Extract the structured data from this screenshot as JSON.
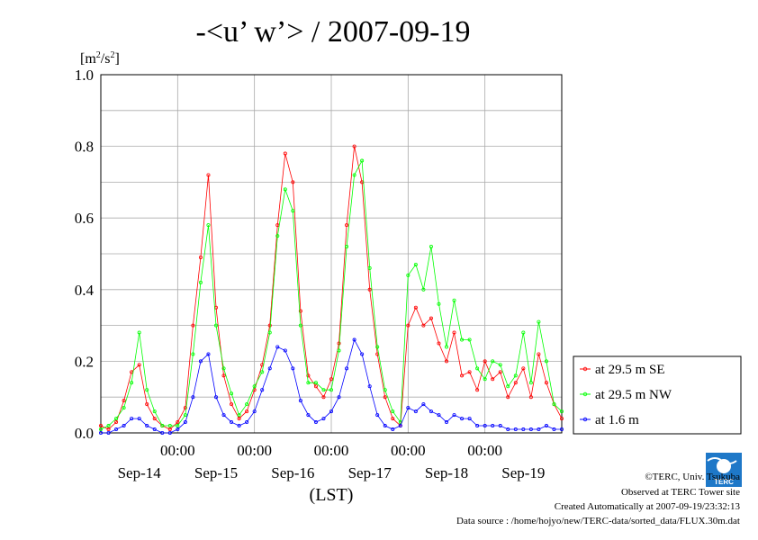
{
  "chart_data": {
    "type": "line",
    "title_main": "-<u’ w’> / 2007-09-19",
    "ylabel": {
      "prefix": "[m",
      "sup1": "2",
      "mid": "/s",
      "sup2": "2",
      "suffix": "]"
    },
    "xlabel": "(LST)",
    "ylim": [
      0,
      1.0
    ],
    "yticks": [
      0,
      0.2,
      0.4,
      0.6,
      0.8,
      1.0
    ],
    "ytick_labels": [
      "0.0",
      "0.2",
      "0.4",
      "0.6",
      "0.8",
      "1.0"
    ],
    "xlim": [
      0,
      6
    ],
    "xtick_labels_time": [
      "00:00",
      "00:00",
      "00:00",
      "00:00",
      "00:00"
    ],
    "x_day_labels": [
      "Sep-14",
      "Sep-15",
      "Sep-16",
      "Sep-17",
      "Sep-18",
      "Sep-19"
    ],
    "grid": true,
    "legend_position": "right",
    "series": [
      {
        "name": "at 29.5 m SE",
        "color": "#ff0000",
        "x": [
          0.0,
          0.1,
          0.2,
          0.3,
          0.4,
          0.5,
          0.6,
          0.7,
          0.8,
          0.9,
          1.0,
          1.1,
          1.2,
          1.3,
          1.4,
          1.5,
          1.6,
          1.7,
          1.8,
          1.9,
          2.0,
          2.1,
          2.2,
          2.3,
          2.4,
          2.5,
          2.6,
          2.7,
          2.8,
          2.9,
          3.0,
          3.1,
          3.2,
          3.3,
          3.4,
          3.5,
          3.6,
          3.7,
          3.8,
          3.9,
          4.0,
          4.1,
          4.2,
          4.3,
          4.4,
          4.5,
          4.6,
          4.7,
          4.8,
          4.9,
          5.0,
          5.1,
          5.2,
          5.3,
          5.4,
          5.5,
          5.6,
          5.7,
          5.8,
          5.9,
          6.0
        ],
        "values": [
          0.02,
          0.01,
          0.03,
          0.09,
          0.17,
          0.19,
          0.08,
          0.04,
          0.02,
          0.01,
          0.03,
          0.07,
          0.3,
          0.49,
          0.72,
          0.35,
          0.16,
          0.08,
          0.04,
          0.06,
          0.12,
          0.19,
          0.3,
          0.58,
          0.78,
          0.7,
          0.34,
          0.16,
          0.13,
          0.1,
          0.15,
          0.25,
          0.58,
          0.8,
          0.7,
          0.4,
          0.22,
          0.1,
          0.04,
          0.02,
          0.3,
          0.35,
          0.3,
          0.32,
          0.25,
          0.2,
          0.28,
          0.16,
          0.17,
          0.12,
          0.2,
          0.15,
          0.17,
          0.1,
          0.14,
          0.18,
          0.1,
          0.22,
          0.14,
          0.08,
          0.04
        ]
      },
      {
        "name": "at 29.5 m NW",
        "color": "#00ff00",
        "x": [
          0.0,
          0.1,
          0.2,
          0.3,
          0.4,
          0.5,
          0.6,
          0.7,
          0.8,
          0.9,
          1.0,
          1.1,
          1.2,
          1.3,
          1.4,
          1.5,
          1.6,
          1.7,
          1.8,
          1.9,
          2.0,
          2.1,
          2.2,
          2.3,
          2.4,
          2.5,
          2.6,
          2.7,
          2.8,
          2.9,
          3.0,
          3.1,
          3.2,
          3.3,
          3.4,
          3.5,
          3.6,
          3.7,
          3.8,
          3.9,
          4.0,
          4.1,
          4.2,
          4.3,
          4.4,
          4.5,
          4.6,
          4.7,
          4.8,
          4.9,
          5.0,
          5.1,
          5.2,
          5.3,
          5.4,
          5.5,
          5.6,
          5.7,
          5.8,
          5.9,
          6.0
        ],
        "values": [
          0.01,
          0.02,
          0.04,
          0.07,
          0.14,
          0.28,
          0.12,
          0.06,
          0.02,
          0.02,
          0.02,
          0.05,
          0.22,
          0.42,
          0.58,
          0.3,
          0.18,
          0.11,
          0.05,
          0.08,
          0.13,
          0.17,
          0.28,
          0.55,
          0.68,
          0.62,
          0.3,
          0.14,
          0.14,
          0.12,
          0.12,
          0.23,
          0.52,
          0.72,
          0.76,
          0.46,
          0.24,
          0.12,
          0.06,
          0.03,
          0.44,
          0.47,
          0.4,
          0.52,
          0.36,
          0.24,
          0.37,
          0.26,
          0.26,
          0.18,
          0.15,
          0.2,
          0.19,
          0.13,
          0.16,
          0.28,
          0.14,
          0.31,
          0.2,
          0.08,
          0.06
        ]
      },
      {
        "name": "at 1.6 m",
        "color": "#0000ff",
        "x": [
          0.0,
          0.1,
          0.2,
          0.3,
          0.4,
          0.5,
          0.6,
          0.7,
          0.8,
          0.9,
          1.0,
          1.1,
          1.2,
          1.3,
          1.4,
          1.5,
          1.6,
          1.7,
          1.8,
          1.9,
          2.0,
          2.1,
          2.2,
          2.3,
          2.4,
          2.5,
          2.6,
          2.7,
          2.8,
          2.9,
          3.0,
          3.1,
          3.2,
          3.3,
          3.4,
          3.5,
          3.6,
          3.7,
          3.8,
          3.9,
          4.0,
          4.1,
          4.2,
          4.3,
          4.4,
          4.5,
          4.6,
          4.7,
          4.8,
          4.9,
          5.0,
          5.1,
          5.2,
          5.3,
          5.4,
          5.5,
          5.6,
          5.7,
          5.8,
          5.9,
          6.0
        ],
        "values": [
          0.0,
          0.0,
          0.01,
          0.02,
          0.04,
          0.04,
          0.02,
          0.01,
          0.0,
          0.0,
          0.01,
          0.03,
          0.1,
          0.2,
          0.22,
          0.1,
          0.05,
          0.03,
          0.02,
          0.03,
          0.06,
          0.12,
          0.18,
          0.24,
          0.23,
          0.18,
          0.09,
          0.05,
          0.03,
          0.04,
          0.06,
          0.1,
          0.18,
          0.26,
          0.22,
          0.13,
          0.05,
          0.02,
          0.01,
          0.02,
          0.07,
          0.06,
          0.08,
          0.06,
          0.05,
          0.03,
          0.05,
          0.04,
          0.04,
          0.02,
          0.02,
          0.02,
          0.02,
          0.01,
          0.01,
          0.01,
          0.01,
          0.01,
          0.02,
          0.01,
          0.01
        ]
      }
    ]
  },
  "footer": {
    "copyright": "©TERC, Univ. Tsukuba",
    "observed": "Observed at TERC Tower site",
    "created": "Created Automatically at 2007-09-19/23:32:13",
    "source": "Data source : /home/hojyo/new/TERC-data/sorted_data/FLUX.30m.dat"
  },
  "logo": {
    "text": "TERC"
  }
}
